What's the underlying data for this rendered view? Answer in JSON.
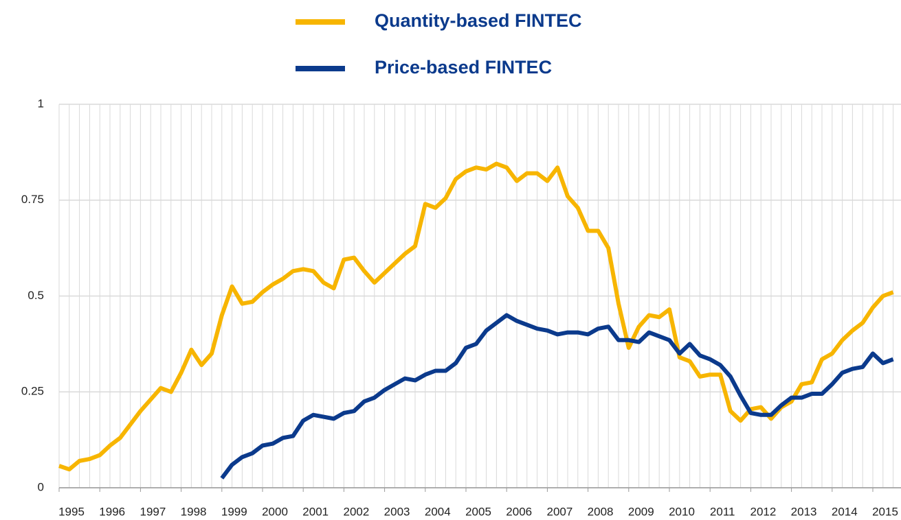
{
  "chart_data": {
    "type": "line",
    "categories": [
      "1995",
      null,
      null,
      null,
      "1996",
      null,
      null,
      null,
      "1997",
      null,
      null,
      null,
      "1998",
      null,
      null,
      null,
      "1999",
      null,
      null,
      null,
      "2000",
      null,
      null,
      null,
      "2001",
      null,
      null,
      null,
      "2002",
      null,
      null,
      null,
      "2003",
      null,
      null,
      null,
      "2004",
      null,
      null,
      null,
      "2005",
      null,
      null,
      null,
      "2006",
      null,
      null,
      null,
      "2007",
      null,
      null,
      null,
      "2008",
      null,
      null,
      null,
      "2009",
      null,
      null,
      null,
      "2010",
      null,
      null,
      null,
      "2011",
      null,
      null,
      null,
      "2012",
      null,
      null,
      null,
      "2013",
      null,
      null,
      null,
      "2014",
      null,
      null,
      null,
      "2015",
      null,
      null
    ],
    "series": [
      {
        "name": "Quantity-based FINTEC",
        "color": "#f7b500",
        "values": [
          0.057,
          0.048,
          0.07,
          0.075,
          0.085,
          0.11,
          0.13,
          0.165,
          0.2,
          0.23,
          0.26,
          0.25,
          0.3,
          0.36,
          0.32,
          0.35,
          0.45,
          0.525,
          0.48,
          0.485,
          0.51,
          0.53,
          0.545,
          0.565,
          0.57,
          0.565,
          0.535,
          0.52,
          0.595,
          0.6,
          0.565,
          0.535,
          0.56,
          0.585,
          0.61,
          0.63,
          0.74,
          0.73,
          0.755,
          0.805,
          0.825,
          0.835,
          0.83,
          0.845,
          0.835,
          0.8,
          0.82,
          0.82,
          0.8,
          0.835,
          0.76,
          0.73,
          0.67,
          0.67,
          0.625,
          0.48,
          0.365,
          0.42,
          0.45,
          0.445,
          0.465,
          0.34,
          0.33,
          0.29,
          0.295,
          0.295,
          0.2,
          0.175,
          0.205,
          0.21,
          0.18,
          0.21,
          0.225,
          0.27,
          0.275,
          0.335,
          0.35,
          0.385,
          0.41,
          0.43,
          0.47,
          0.5,
          0.51
        ]
      },
      {
        "name": "Price-based FINTEC",
        "color": "#0b3a8c",
        "values": [
          null,
          null,
          null,
          null,
          null,
          null,
          null,
          null,
          null,
          null,
          null,
          null,
          null,
          null,
          null,
          null,
          0.025,
          0.06,
          0.08,
          0.09,
          0.11,
          0.115,
          0.13,
          0.135,
          0.175,
          0.19,
          0.185,
          0.18,
          0.195,
          0.2,
          0.225,
          0.235,
          0.255,
          0.27,
          0.285,
          0.28,
          0.295,
          0.305,
          0.305,
          0.325,
          0.365,
          0.375,
          0.41,
          0.43,
          0.45,
          0.435,
          0.425,
          0.415,
          0.41,
          0.4,
          0.405,
          0.405,
          0.4,
          0.415,
          0.42,
          0.385,
          0.385,
          0.38,
          0.405,
          0.395,
          0.385,
          0.35,
          0.375,
          0.345,
          0.335,
          0.32,
          0.29,
          0.24,
          0.195,
          0.19,
          0.19,
          0.215,
          0.235,
          0.235,
          0.245,
          0.245,
          0.27,
          0.3,
          0.31,
          0.315,
          0.35,
          0.325,
          0.335
        ]
      }
    ],
    "ylim": [
      0,
      1
    ],
    "yticks": [
      0,
      0.25,
      0.5,
      0.75,
      1
    ],
    "grid": true
  }
}
